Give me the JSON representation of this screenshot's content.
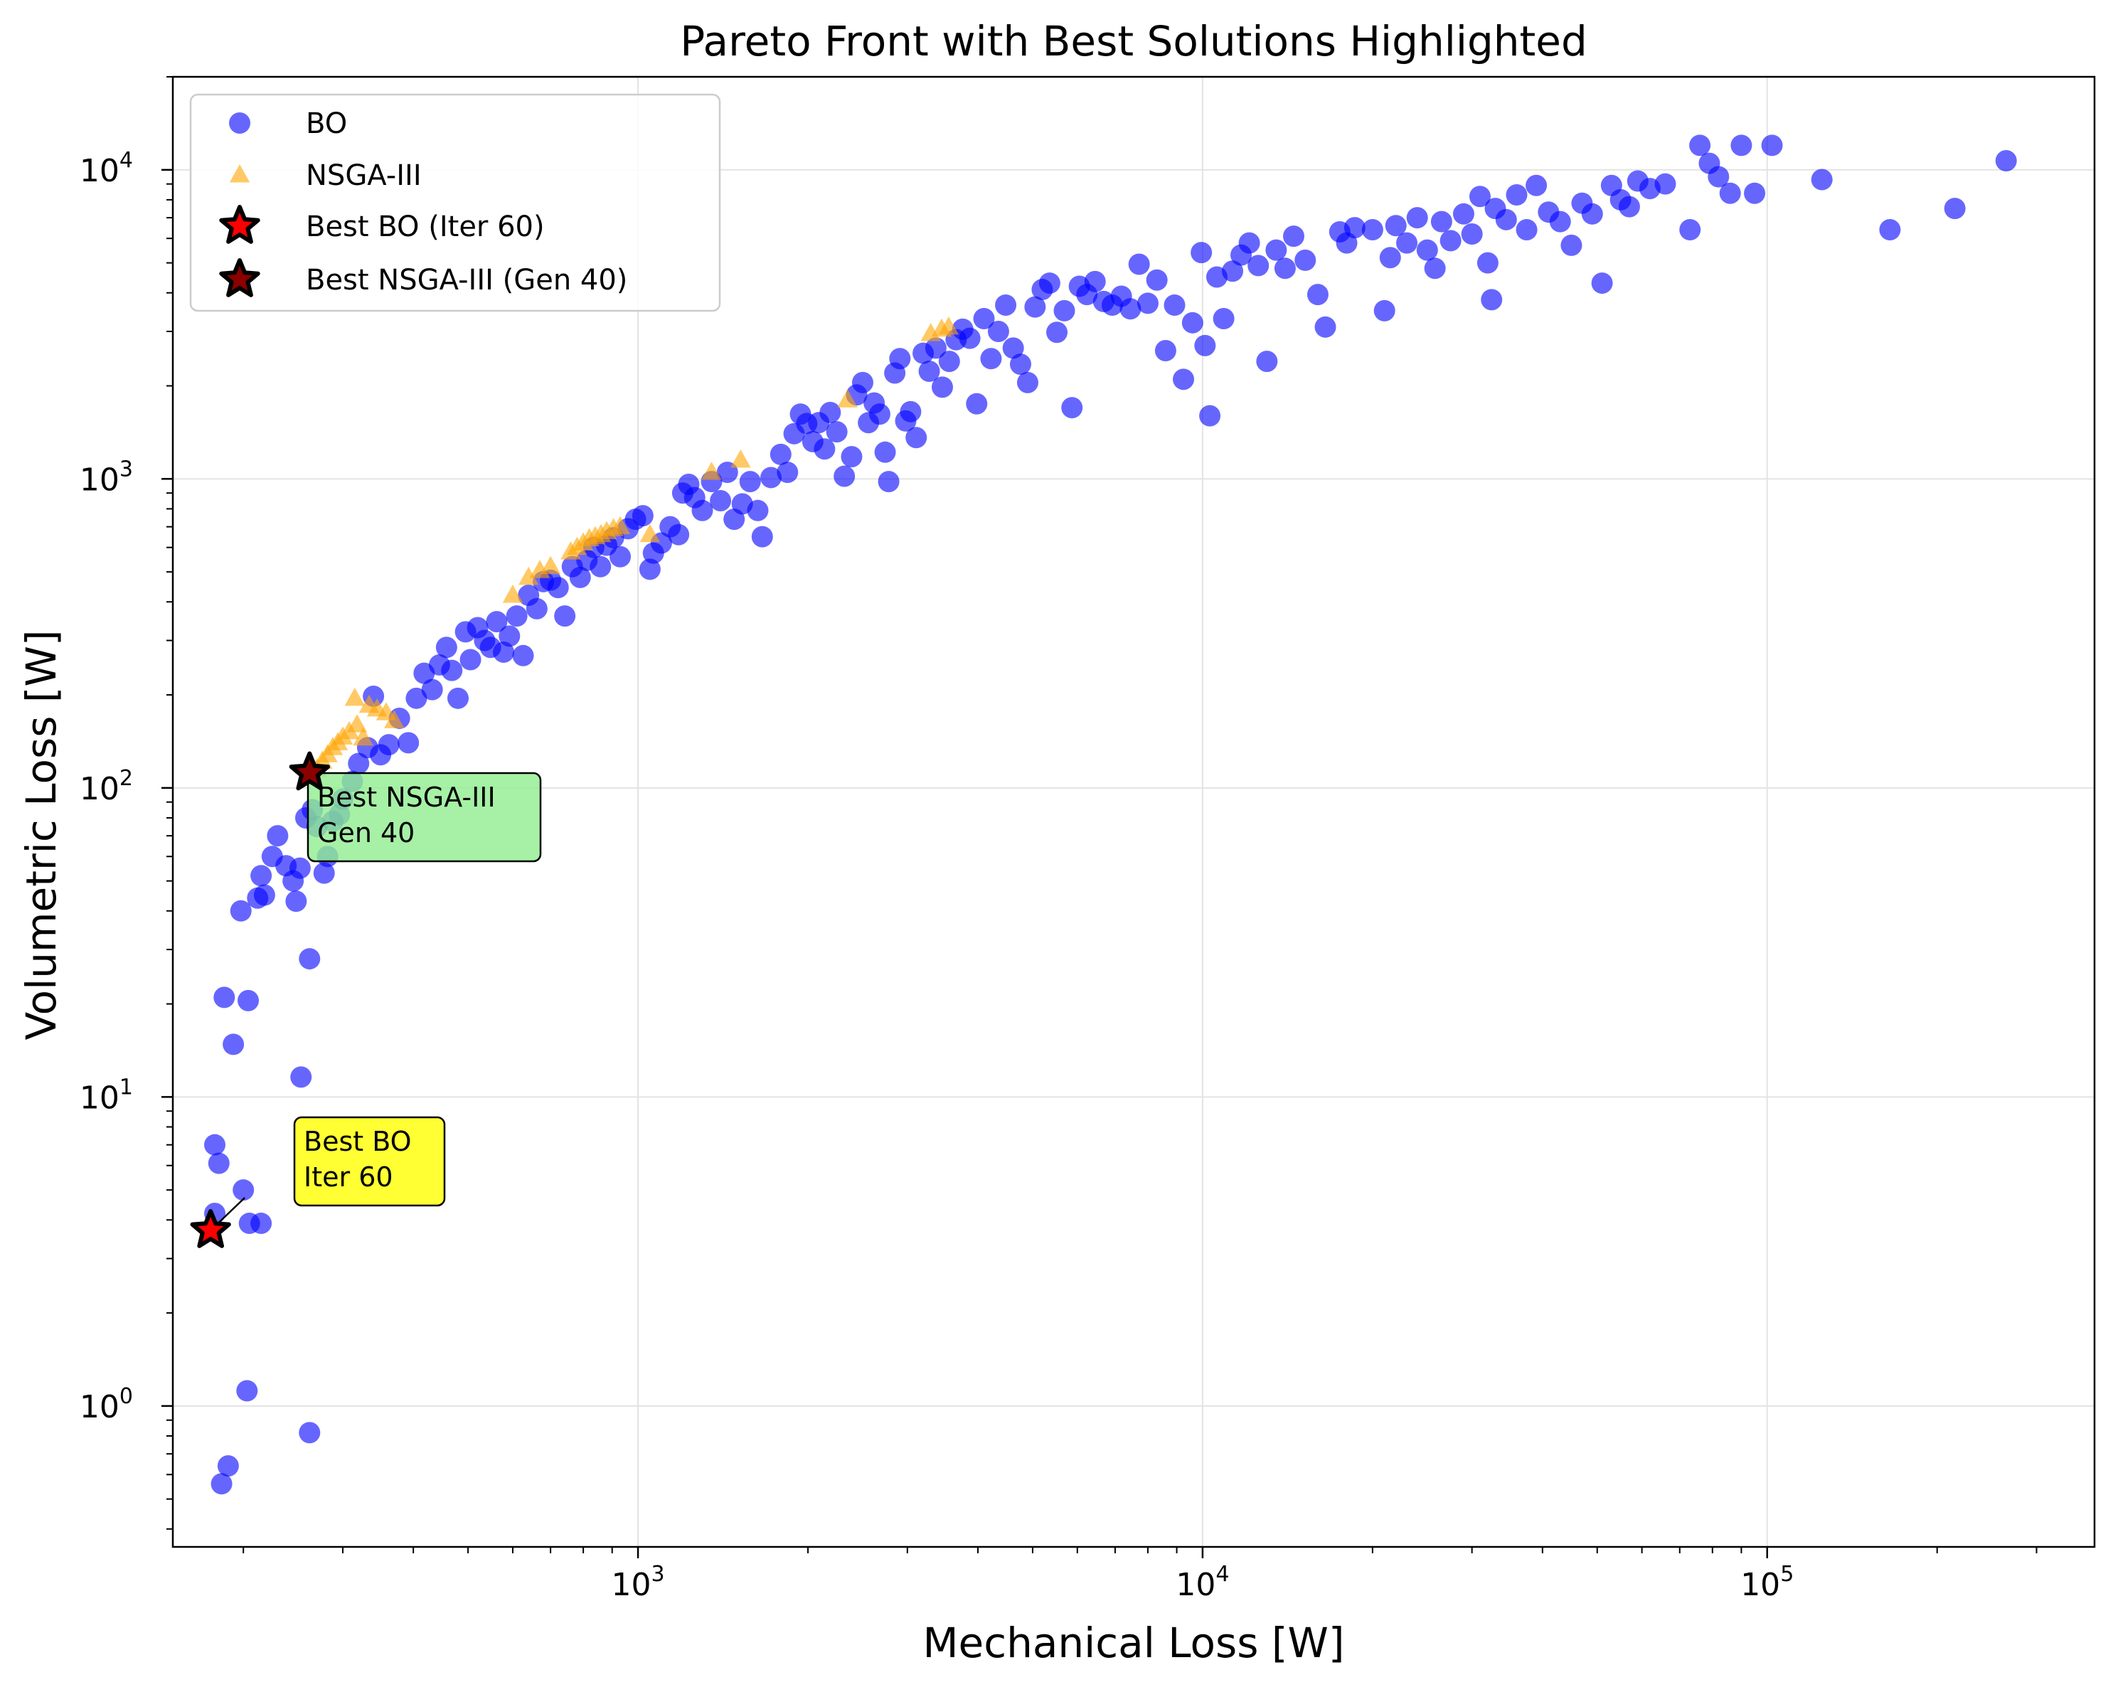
{
  "chart_data": {
    "type": "scatter",
    "title": "Pareto Front with Best Solutions Highlighted",
    "xlabel": "Mechanical Loss [W]",
    "ylabel": "Volumetric Loss [W]",
    "xscale": "log",
    "yscale": "log",
    "xlim": [
      150,
      380000
    ],
    "ylim": [
      0.35,
      20000
    ],
    "x_ticks": [
      {
        "value": 1000,
        "base": "10",
        "exp": "3"
      },
      {
        "value": 10000,
        "base": "10",
        "exp": "4"
      },
      {
        "value": 100000,
        "base": "10",
        "exp": "5"
      }
    ],
    "y_ticks": [
      {
        "value": 1,
        "base": "10",
        "exp": "0"
      },
      {
        "value": 10,
        "base": "10",
        "exp": "1"
      },
      {
        "value": 100,
        "base": "10",
        "exp": "2"
      },
      {
        "value": 1000,
        "base": "10",
        "exp": "3"
      },
      {
        "value": 10000,
        "base": "10",
        "exp": "4"
      }
    ],
    "grid": true,
    "legend_position": "top-left",
    "series": [
      {
        "name": "BO",
        "marker": "circle",
        "color": "#0000ff",
        "points": [
          [
            183,
            0.56
          ],
          [
            188,
            0.64
          ],
          [
            203,
            1.12
          ],
          [
            262,
            0.82
          ],
          [
            181,
            6.1
          ],
          [
            178,
            7.0
          ],
          [
            178,
            4.2
          ],
          [
            200,
            5.0
          ],
          [
            205,
            3.9
          ],
          [
            215,
            3.9
          ],
          [
            185,
            21
          ],
          [
            204,
            20.5
          ],
          [
            192,
            14.8
          ],
          [
            253,
            11.6
          ],
          [
            262,
            28
          ],
          [
            198,
            40
          ],
          [
            212,
            44
          ],
          [
            215,
            52
          ],
          [
            218,
            45
          ],
          [
            225,
            60
          ],
          [
            230,
            70
          ],
          [
            238,
            56
          ],
          [
            245,
            50
          ],
          [
            248,
            43
          ],
          [
            252,
            55
          ],
          [
            258,
            80
          ],
          [
            265,
            85
          ],
          [
            270,
            75
          ],
          [
            278,
            53
          ],
          [
            282,
            60
          ],
          [
            288,
            78
          ],
          [
            296,
            82
          ],
          [
            300,
            92
          ],
          [
            312,
            105
          ],
          [
            320,
            120
          ],
          [
            332,
            135
          ],
          [
            340,
            198
          ],
          [
            350,
            128
          ],
          [
            362,
            138
          ],
          [
            378,
            168
          ],
          [
            392,
            140
          ],
          [
            405,
            195
          ],
          [
            418,
            235
          ],
          [
            432,
            208
          ],
          [
            445,
            250
          ],
          [
            458,
            285
          ],
          [
            468,
            240
          ],
          [
            480,
            195
          ],
          [
            495,
            320
          ],
          [
            505,
            260
          ],
          [
            520,
            330
          ],
          [
            535,
            300
          ],
          [
            548,
            285
          ],
          [
            562,
            345
          ],
          [
            578,
            275
          ],
          [
            592,
            310
          ],
          [
            610,
            360
          ],
          [
            626,
            268
          ],
          [
            640,
            420
          ],
          [
            662,
            380
          ],
          [
            680,
            465
          ],
          [
            700,
            470
          ],
          [
            722,
            445
          ],
          [
            742,
            360
          ],
          [
            765,
            520
          ],
          [
            790,
            480
          ],
          [
            812,
            545
          ],
          [
            835,
            600
          ],
          [
            858,
            520
          ],
          [
            880,
            610
          ],
          [
            905,
            645
          ],
          [
            930,
            560
          ],
          [
            960,
            690
          ],
          [
            990,
            740
          ],
          [
            1020,
            760
          ],
          [
            1050,
            510
          ],
          [
            1065,
            575
          ],
          [
            1100,
            620
          ],
          [
            1140,
            700
          ],
          [
            1180,
            660
          ],
          [
            1200,
            900
          ],
          [
            1230,
            960
          ],
          [
            1260,
            870
          ],
          [
            1300,
            790
          ],
          [
            1350,
            980
          ],
          [
            1400,
            850
          ],
          [
            1440,
            1050
          ],
          [
            1480,
            740
          ],
          [
            1530,
            830
          ],
          [
            1580,
            980
          ],
          [
            1630,
            790
          ],
          [
            1660,
            650
          ],
          [
            1720,
            1010
          ],
          [
            1790,
            1200
          ],
          [
            1840,
            1050
          ],
          [
            1890,
            1400
          ],
          [
            1940,
            1620
          ],
          [
            1990,
            1510
          ],
          [
            2040,
            1320
          ],
          [
            2090,
            1520
          ],
          [
            2140,
            1250
          ],
          [
            2190,
            1640
          ],
          [
            2250,
            1420
          ],
          [
            2320,
            1020
          ],
          [
            2390,
            1180
          ],
          [
            2440,
            1870
          ],
          [
            2500,
            2050
          ],
          [
            2560,
            1520
          ],
          [
            2620,
            1760
          ],
          [
            2680,
            1620
          ],
          [
            2740,
            1220
          ],
          [
            2780,
            980
          ],
          [
            2850,
            2200
          ],
          [
            2910,
            2450
          ],
          [
            2980,
            1540
          ],
          [
            3040,
            1650
          ],
          [
            3110,
            1360
          ],
          [
            3200,
            2550
          ],
          [
            3280,
            2230
          ],
          [
            3370,
            2650
          ],
          [
            3460,
            1980
          ],
          [
            3560,
            2400
          ],
          [
            3660,
            2820
          ],
          [
            3760,
            3050
          ],
          [
            3870,
            2850
          ],
          [
            3980,
            1750
          ],
          [
            4100,
            3300
          ],
          [
            4220,
            2450
          ],
          [
            4350,
            3000
          ],
          [
            4480,
            3650
          ],
          [
            4620,
            2650
          ],
          [
            4760,
            2350
          ],
          [
            4900,
            2050
          ],
          [
            5050,
            3600
          ],
          [
            5200,
            4100
          ],
          [
            5360,
            4300
          ],
          [
            5520,
            2980
          ],
          [
            5690,
            3500
          ],
          [
            5870,
            1700
          ],
          [
            6050,
            4200
          ],
          [
            6240,
            3950
          ],
          [
            6450,
            4350
          ],
          [
            6680,
            3750
          ],
          [
            6920,
            3650
          ],
          [
            7180,
            3900
          ],
          [
            7450,
            3550
          ],
          [
            7720,
            4950
          ],
          [
            8000,
            3700
          ],
          [
            8300,
            4400
          ],
          [
            8600,
            2600
          ],
          [
            8920,
            3650
          ],
          [
            9250,
            2100
          ],
          [
            9600,
            3200
          ],
          [
            9950,
            5400
          ],
          [
            10100,
            2700
          ],
          [
            10300,
            1600
          ],
          [
            10600,
            4500
          ],
          [
            10900,
            3300
          ],
          [
            11300,
            4700
          ],
          [
            11700,
            5300
          ],
          [
            12100,
            5800
          ],
          [
            12550,
            4900
          ],
          [
            13000,
            2400
          ],
          [
            13500,
            5500
          ],
          [
            14000,
            4800
          ],
          [
            14500,
            6100
          ],
          [
            15200,
            5100
          ],
          [
            16000,
            3950
          ],
          [
            16500,
            3100
          ],
          [
            17500,
            6300
          ],
          [
            18000,
            5800
          ],
          [
            18600,
            6500
          ],
          [
            20000,
            6400
          ],
          [
            21000,
            3500
          ],
          [
            21500,
            5200
          ],
          [
            22000,
            6600
          ],
          [
            23000,
            5800
          ],
          [
            24000,
            7000
          ],
          [
            25000,
            5500
          ],
          [
            25800,
            4800
          ],
          [
            26500,
            6800
          ],
          [
            27500,
            5900
          ],
          [
            29000,
            7200
          ],
          [
            30000,
            6200
          ],
          [
            31000,
            8200
          ],
          [
            32000,
            5000
          ],
          [
            32500,
            3800
          ],
          [
            33000,
            7500
          ],
          [
            34500,
            6900
          ],
          [
            36000,
            8300
          ],
          [
            37500,
            6400
          ],
          [
            39000,
            8900
          ],
          [
            41000,
            7300
          ],
          [
            43000,
            6800
          ],
          [
            45000,
            5700
          ],
          [
            47000,
            7800
          ],
          [
            49000,
            7200
          ],
          [
            51000,
            4300
          ],
          [
            53000,
            8900
          ],
          [
            55000,
            8000
          ],
          [
            57000,
            7600
          ],
          [
            59000,
            9200
          ],
          [
            62000,
            8700
          ],
          [
            66000,
            9000
          ],
          [
            73000,
            6400
          ],
          [
            76000,
            12000
          ],
          [
            79000,
            10500
          ],
          [
            82000,
            9500
          ],
          [
            86000,
            8400
          ],
          [
            90000,
            12000
          ],
          [
            95000,
            8400
          ],
          [
            102000,
            12000
          ],
          [
            125000,
            9300
          ],
          [
            165000,
            6400
          ],
          [
            215000,
            7500
          ],
          [
            265000,
            10700
          ]
        ]
      },
      {
        "name": "NSGA-III",
        "marker": "triangle",
        "color": "#ffa500",
        "points": [
          [
            262,
            108
          ],
          [
            270,
            115
          ],
          [
            276,
            122
          ],
          [
            282,
            128
          ],
          [
            288,
            135
          ],
          [
            294,
            140
          ],
          [
            300,
            146
          ],
          [
            308,
            152
          ],
          [
            318,
            160
          ],
          [
            326,
            145
          ],
          [
            334,
            185
          ],
          [
            345,
            180
          ],
          [
            358,
            175
          ],
          [
            315,
            195
          ],
          [
            370,
            165
          ],
          [
            600,
            420
          ],
          [
            640,
            480
          ],
          [
            670,
            505
          ],
          [
            700,
            520
          ],
          [
            760,
            580
          ],
          [
            780,
            600
          ],
          [
            800,
            620
          ],
          [
            820,
            640
          ],
          [
            840,
            650
          ],
          [
            860,
            660
          ],
          [
            880,
            675
          ],
          [
            905,
            690
          ],
          [
            930,
            700
          ],
          [
            1050,
            660
          ],
          [
            1350,
            1050
          ],
          [
            1520,
            1150
          ],
          [
            2350,
            1800
          ],
          [
            3300,
            2950
          ],
          [
            3450,
            3050
          ],
          [
            3550,
            3100
          ]
        ]
      },
      {
        "name": "Best BO (Iter 60)",
        "marker": "star",
        "color": "#ff0000",
        "points": [
          [
            175,
            3.7
          ]
        ]
      },
      {
        "name": "Best NSGA-III (Gen 40)",
        "marker": "star",
        "color": "#8b0000",
        "points": [
          [
            262,
            112
          ]
        ]
      }
    ],
    "annotations": [
      {
        "id": "nsga",
        "lines": [
          "Best NSGA-III",
          "Gen 40"
        ],
        "color": "#90ee90"
      },
      {
        "id": "bo",
        "lines": [
          "Best BO",
          "Iter 60"
        ],
        "color": "#ffff00"
      }
    ]
  }
}
